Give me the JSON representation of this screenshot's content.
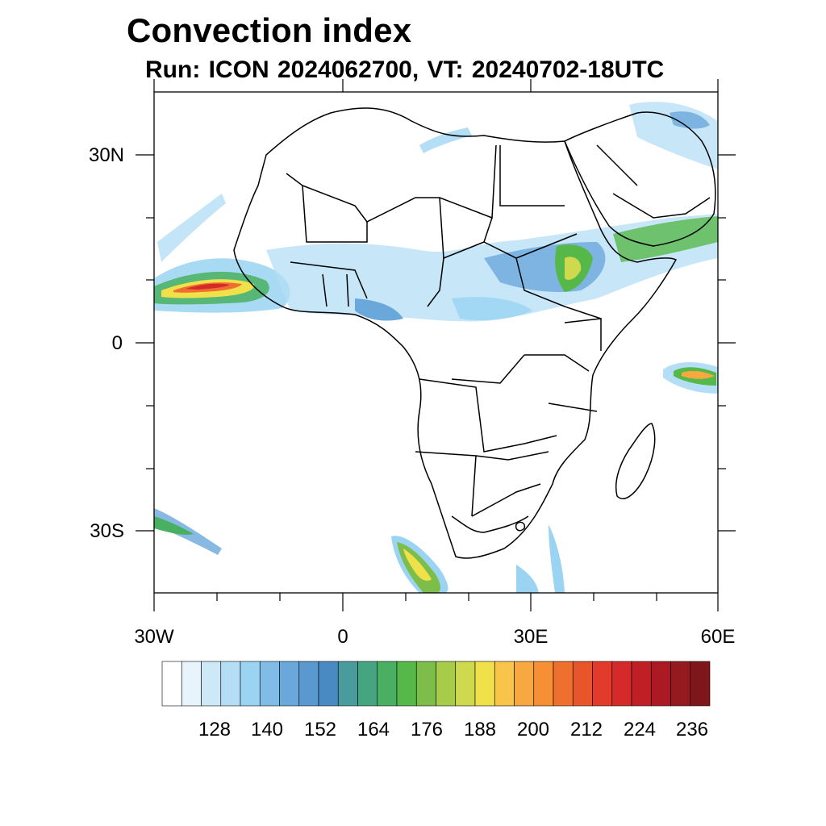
{
  "title": "Convection index",
  "subtitle": "Run: ICON 2024062700,  VT: 20240702-18UTC",
  "axes": {
    "x_tick_labels": [
      "30W",
      "0",
      "30E",
      "60E"
    ],
    "y_tick_labels": [
      "30N",
      "0",
      "30S"
    ]
  },
  "colorbar": {
    "labels": [
      "128",
      "140",
      "152",
      "164",
      "176",
      "188",
      "200",
      "212",
      "224",
      "236"
    ],
    "colors": [
      "#ffffff",
      "#e8f4fb",
      "#cde9f7",
      "#b4def5",
      "#9ad4f2",
      "#80bce6",
      "#6aa8dc",
      "#5a98d0",
      "#4a8ac2",
      "#4a9c9c",
      "#45a580",
      "#48b060",
      "#57b84a",
      "#7dbd4a",
      "#a6cc4a",
      "#cfd94d",
      "#f0e04a",
      "#f8c44a",
      "#f8a840",
      "#f59035",
      "#ef6f2e",
      "#e8552b",
      "#e23a2b",
      "#d52a2a",
      "#c01f26",
      "#ab1a22",
      "#951a1f",
      "#7f161b"
    ]
  },
  "map": {
    "region": "Africa",
    "lon_range": [
      -30,
      60
    ],
    "lat_range": [
      -40,
      40
    ],
    "variable": "Convection index"
  }
}
